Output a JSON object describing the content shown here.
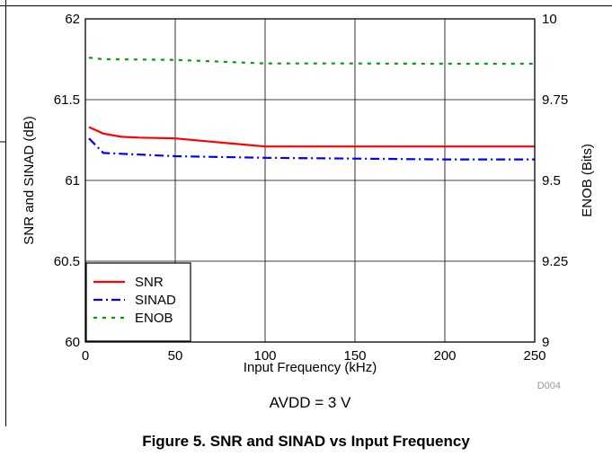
{
  "chart_data": {
    "type": "line",
    "title": "",
    "xlabel": "Input Frequency (kHz)",
    "ylabel": "SNR and SINAD (dB)",
    "y2label": "ENOB (Bits)",
    "xlim": [
      0,
      250
    ],
    "ylim": [
      60,
      62
    ],
    "y2lim": [
      9,
      10
    ],
    "x_ticks": [
      "0",
      "50",
      "100",
      "150",
      "200",
      "250"
    ],
    "y_ticks": [
      "60",
      "60.5",
      "61",
      "61.5",
      "62"
    ],
    "y2_ticks": [
      "9",
      "9.25",
      "9.5",
      "9.75",
      "10"
    ],
    "grid": true,
    "legend_position": "bottom-left",
    "annotation": "AVDD = 3 V",
    "figure_id": "D004",
    "series": [
      {
        "name": "SNR",
        "axis": "left",
        "color": "#ff0000",
        "dash": "solid",
        "x": [
          2,
          10,
          20,
          30,
          50,
          70,
          100,
          150,
          200,
          250
        ],
        "y": [
          61.33,
          61.29,
          61.27,
          61.265,
          61.26,
          61.24,
          61.21,
          61.21,
          61.21,
          61.21
        ]
      },
      {
        "name": "SINAD",
        "axis": "left",
        "color": "#0000ff",
        "dash": "dashdot",
        "x": [
          2,
          10,
          20,
          50,
          100,
          150,
          200,
          250
        ],
        "y": [
          61.26,
          61.17,
          61.165,
          61.15,
          61.14,
          61.135,
          61.13,
          61.13
        ]
      },
      {
        "name": "ENOB",
        "axis": "right",
        "color": "#00a000",
        "dash": "dot",
        "x": [
          2,
          10,
          50,
          100,
          150,
          200,
          250
        ],
        "y": [
          9.88,
          9.875,
          9.873,
          9.862,
          9.862,
          9.861,
          9.861
        ]
      }
    ]
  },
  "caption": "Figure 5. SNR and SINAD vs Input Frequency"
}
